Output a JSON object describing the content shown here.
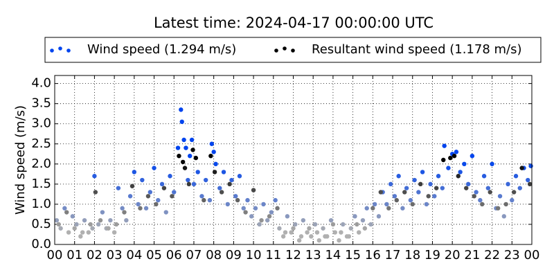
{
  "chart_data": {
    "type": "scatter",
    "title": "Latest time: 2024-04-17 00:00:00 UTC",
    "y_label": "Wind speed (m/s)",
    "xlim": [
      0,
      24
    ],
    "ylim": [
      0,
      4.2
    ],
    "xticks": [
      {
        "value": 0,
        "label": "00"
      },
      {
        "value": 1,
        "label": "01"
      },
      {
        "value": 2,
        "label": "02"
      },
      {
        "value": 3,
        "label": "03"
      },
      {
        "value": 4,
        "label": "04"
      },
      {
        "value": 5,
        "label": "05"
      },
      {
        "value": 6,
        "label": "06"
      },
      {
        "value": 7,
        "label": "07"
      },
      {
        "value": 8,
        "label": "08"
      },
      {
        "value": 9,
        "label": "09"
      },
      10,
      11,
      12,
      13,
      14,
      15,
      16,
      17,
      18,
      19,
      20,
      21,
      22,
      23,
      {
        "value": 24,
        "label": "00"
      }
    ],
    "yticks": [
      {
        "value": 0,
        "label": "0.0"
      },
      0.5,
      {
        "value": 1,
        "label": "1.0"
      },
      1.5,
      {
        "value": 2,
        "label": "2.0"
      },
      2.5,
      {
        "value": 3,
        "label": "3.0"
      },
      3.5,
      {
        "value": 4,
        "label": "4.0"
      }
    ],
    "grid": true,
    "legend_position": "top",
    "series": [
      {
        "name": "Wind speed (1.294 m/s)",
        "color": "#0044ee",
        "x": [
          0.1,
          0.3,
          0.5,
          0.7,
          0.9,
          1.1,
          1.3,
          1.5,
          1.7,
          1.9,
          2.0,
          2.2,
          2.4,
          2.6,
          2.8,
          3.0,
          3.2,
          3.4,
          3.6,
          3.8,
          4.0,
          4.2,
          4.4,
          4.6,
          4.8,
          5.0,
          5.2,
          5.4,
          5.6,
          5.8,
          6.0,
          6.2,
          6.35,
          6.4,
          6.5,
          6.6,
          6.7,
          6.8,
          6.9,
          7.0,
          7.2,
          7.4,
          7.6,
          7.8,
          7.9,
          8.0,
          8.1,
          8.3,
          8.5,
          8.7,
          8.9,
          9.1,
          9.3,
          9.5,
          9.7,
          9.9,
          10.1,
          10.3,
          10.5,
          10.7,
          10.9,
          11.1,
          11.3,
          11.5,
          11.7,
          11.9,
          12.1,
          12.3,
          12.5,
          12.7,
          12.9,
          13.1,
          13.3,
          13.5,
          13.7,
          13.9,
          14.1,
          14.3,
          14.5,
          14.7,
          14.9,
          15.1,
          15.3,
          15.5,
          15.7,
          15.9,
          16.1,
          16.3,
          16.5,
          16.7,
          16.9,
          17.1,
          17.3,
          17.5,
          17.7,
          17.9,
          18.1,
          18.3,
          18.5,
          18.7,
          18.9,
          19.1,
          19.3,
          19.5,
          19.6,
          19.8,
          20.0,
          20.2,
          20.4,
          20.6,
          20.8,
          21.0,
          21.2,
          21.4,
          21.6,
          21.8,
          22.0,
          22.2,
          22.4,
          22.6,
          22.8,
          23.0,
          23.2,
          23.4,
          23.6,
          23.8,
          23.95
        ],
        "values": [
          0.6,
          0.4,
          0.9,
          0.3,
          0.7,
          0.5,
          0.2,
          0.6,
          0.3,
          0.4,
          1.7,
          0.5,
          0.8,
          0.4,
          0.6,
          0.3,
          1.4,
          0.9,
          0.6,
          1.2,
          1.8,
          1.0,
          1.6,
          0.9,
          1.3,
          1.9,
          1.1,
          1.5,
          0.8,
          1.7,
          1.3,
          2.4,
          3.35,
          3.05,
          2.6,
          2.4,
          1.6,
          2.2,
          2.6,
          1.5,
          1.8,
          1.2,
          1.6,
          1.1,
          2.5,
          2.3,
          2.0,
          1.4,
          1.8,
          1.0,
          1.6,
          1.2,
          1.7,
          0.9,
          1.1,
          0.7,
          0.9,
          0.5,
          1.0,
          0.6,
          0.8,
          1.1,
          0.4,
          0.2,
          0.7,
          0.3,
          0.5,
          0.1,
          0.6,
          0.3,
          0.2,
          0.5,
          0.1,
          0.4,
          0.2,
          0.6,
          0.3,
          0.1,
          0.5,
          0.2,
          0.4,
          0.7,
          0.3,
          0.6,
          0.9,
          0.5,
          1.0,
          0.7,
          1.3,
          1.0,
          1.5,
          1.2,
          1.7,
          0.9,
          1.4,
          1.1,
          1.6,
          1.3,
          1.8,
          1.0,
          1.5,
          1.2,
          1.7,
          1.4,
          2.45,
          1.9,
          2.25,
          2.3,
          1.8,
          2.0,
          1.5,
          2.2,
          1.3,
          1.1,
          1.7,
          1.4,
          2.0,
          0.9,
          1.2,
          0.7,
          1.5,
          1.1,
          1.7,
          1.4,
          1.9,
          1.6,
          1.95
        ]
      },
      {
        "name": "Resultant wind speed (1.178 m/s)",
        "color": "#000000",
        "x": [
          0.2,
          0.6,
          1.0,
          1.4,
          1.8,
          2.05,
          2.3,
          2.7,
          3.1,
          3.5,
          3.9,
          4.3,
          4.7,
          5.1,
          5.5,
          5.9,
          6.25,
          6.45,
          6.55,
          6.75,
          6.95,
          7.1,
          7.5,
          7.85,
          8.05,
          8.4,
          8.8,
          9.2,
          9.6,
          10.0,
          10.4,
          10.8,
          11.2,
          11.6,
          12.0,
          12.4,
          12.8,
          13.2,
          13.6,
          14.0,
          14.4,
          14.8,
          15.2,
          15.6,
          16.0,
          16.4,
          16.8,
          17.2,
          17.6,
          18.0,
          18.4,
          18.8,
          19.2,
          19.55,
          19.9,
          20.1,
          20.3,
          20.7,
          21.1,
          21.5,
          21.9,
          22.3,
          22.7,
          23.1,
          23.5,
          23.9
        ],
        "values": [
          0.5,
          0.8,
          0.4,
          0.3,
          0.5,
          1.3,
          0.6,
          0.4,
          0.5,
          0.8,
          1.45,
          0.9,
          1.2,
          1.0,
          1.4,
          1.2,
          2.2,
          2.05,
          1.9,
          1.5,
          2.35,
          2.15,
          1.1,
          2.2,
          1.8,
          1.3,
          1.5,
          1.1,
          0.8,
          1.35,
          0.6,
          0.7,
          0.9,
          0.3,
          0.4,
          0.2,
          0.4,
          0.3,
          0.2,
          0.5,
          0.3,
          0.2,
          0.5,
          0.4,
          0.9,
          1.3,
          0.9,
          1.1,
          1.3,
          1.0,
          1.5,
          1.2,
          1.4,
          2.1,
          2.15,
          2.2,
          1.7,
          1.4,
          1.2,
          1.0,
          1.3,
          0.9,
          1.0,
          1.3,
          1.9,
          1.5
        ]
      }
    ]
  }
}
